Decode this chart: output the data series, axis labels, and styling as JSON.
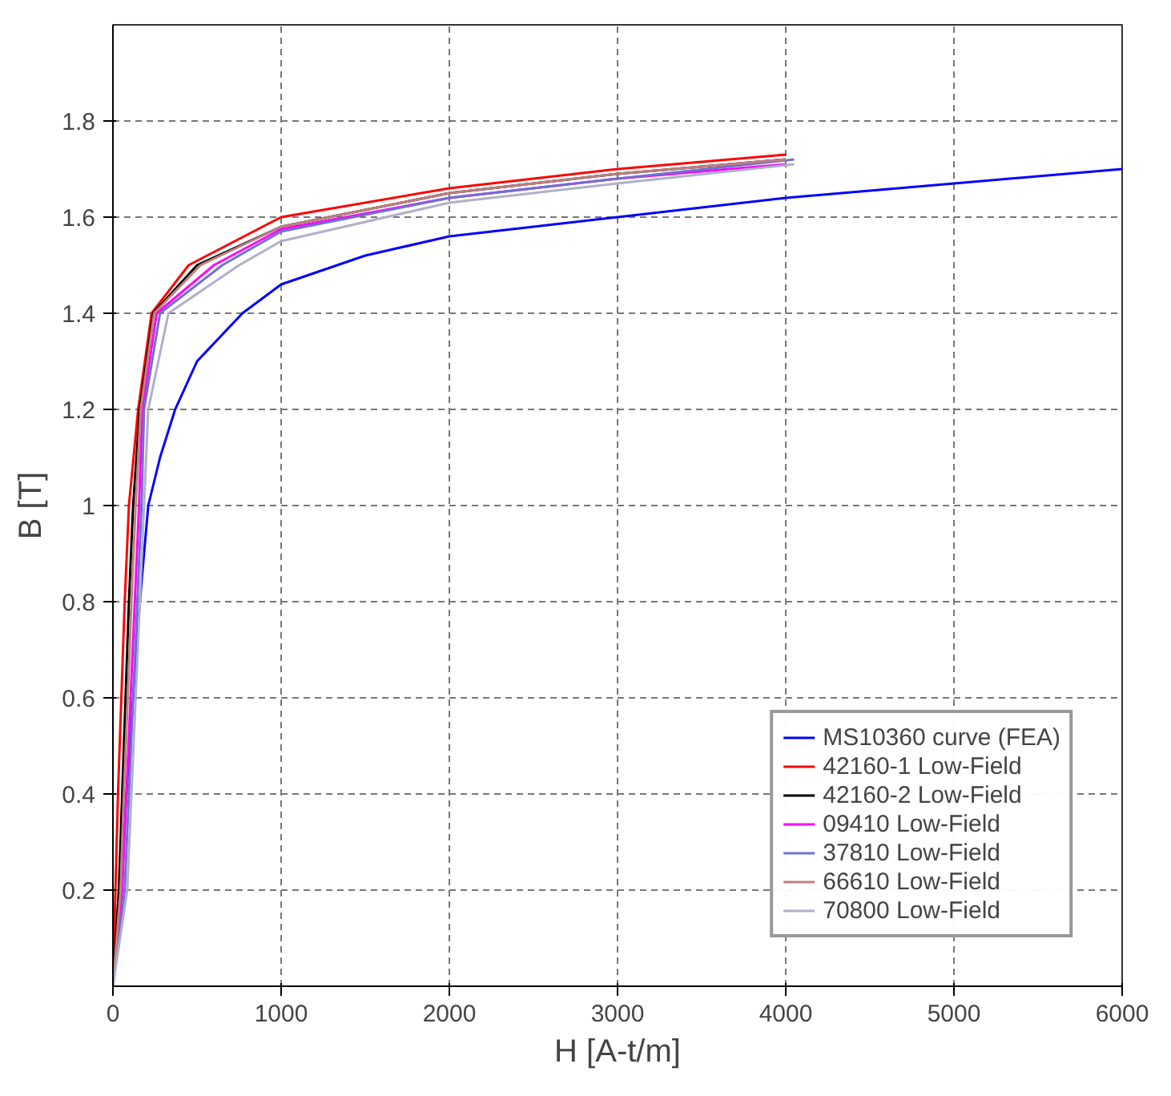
{
  "chart_data": {
    "type": "line",
    "xlabel": "H [A-t/m]",
    "ylabel": "B [T]",
    "xlim": [
      0,
      6000
    ],
    "ylim": [
      0,
      2
    ],
    "xticks": [
      0,
      1000,
      2000,
      3000,
      4000,
      5000,
      6000
    ],
    "yticks": [
      0.2,
      0.4,
      0.6,
      0.8,
      1,
      1.2,
      1.4,
      1.6,
      1.8
    ],
    "grid": true,
    "legend": "bottom right",
    "line_style": "solid",
    "series": [
      {
        "name": "MS10360 curve (FEA)",
        "color": "#0000ff",
        "x": [
          0,
          40,
          80,
          120,
          160,
          210,
          280,
          370,
          500,
          770,
          1000,
          1500,
          2000,
          2500,
          3000,
          3500,
          4000,
          4500,
          5000,
          5500,
          6000
        ],
        "values": [
          0,
          0.2,
          0.4,
          0.6,
          0.8,
          1.0,
          1.1,
          1.2,
          1.3,
          1.4,
          1.46,
          1.52,
          1.56,
          1.58,
          1.6,
          1.62,
          1.64,
          1.655,
          1.67,
          1.685,
          1.7
        ]
      },
      {
        "name": "42160-1 Low-Field",
        "color": "#ff0000",
        "x": [
          0,
          15,
          30,
          50,
          70,
          95,
          150,
          230,
          450,
          1000,
          2000,
          3000,
          4000
        ],
        "values": [
          0,
          0.2,
          0.4,
          0.6,
          0.8,
          1.0,
          1.2,
          1.4,
          1.5,
          1.6,
          1.66,
          1.7,
          1.73
        ]
      },
      {
        "name": "42160-2 Low-Field",
        "color": "#000000",
        "x": [
          0,
          35,
          55,
          75,
          95,
          120,
          160,
          240,
          500,
          1000,
          2000,
          3000,
          4000
        ],
        "values": [
          0,
          0.2,
          0.4,
          0.6,
          0.8,
          1.0,
          1.2,
          1.4,
          1.5,
          1.58,
          1.65,
          1.69,
          1.72
        ]
      },
      {
        "name": "09410 Low-Field",
        "color": "#ff00ff",
        "x": [
          0,
          55,
          80,
          105,
          130,
          155,
          175,
          260,
          600,
          1000,
          2000,
          3000,
          4000
        ],
        "values": [
          0,
          0.2,
          0.4,
          0.6,
          0.8,
          1.0,
          1.2,
          1.4,
          1.5,
          1.575,
          1.64,
          1.68,
          1.71
        ]
      },
      {
        "name": "37810 Low-Field",
        "color": "#7070d0",
        "x": [
          0,
          70,
          95,
          120,
          145,
          170,
          185,
          280,
          650,
          1000,
          2000,
          3000,
          4050
        ],
        "values": [
          0,
          0.2,
          0.4,
          0.6,
          0.8,
          1.0,
          1.2,
          1.4,
          1.5,
          1.57,
          1.64,
          1.68,
          1.72
        ]
      },
      {
        "name": "66610 Low-Field",
        "color": "#c08080",
        "x": [
          0,
          45,
          65,
          88,
          110,
          135,
          165,
          245,
          520,
          1000,
          2000,
          3000,
          4000
        ],
        "values": [
          0,
          0.2,
          0.4,
          0.6,
          0.8,
          1.0,
          1.2,
          1.4,
          1.5,
          1.58,
          1.65,
          1.69,
          1.72
        ]
      },
      {
        "name": "70800 Low-Field",
        "color": "#b0b0c8",
        "x": [
          0,
          85,
          110,
          135,
          160,
          185,
          210,
          330,
          750,
          1000,
          2000,
          3000,
          4050
        ],
        "values": [
          0,
          0.2,
          0.4,
          0.6,
          0.8,
          1.0,
          1.2,
          1.4,
          1.5,
          1.55,
          1.63,
          1.67,
          1.71
        ]
      }
    ]
  }
}
